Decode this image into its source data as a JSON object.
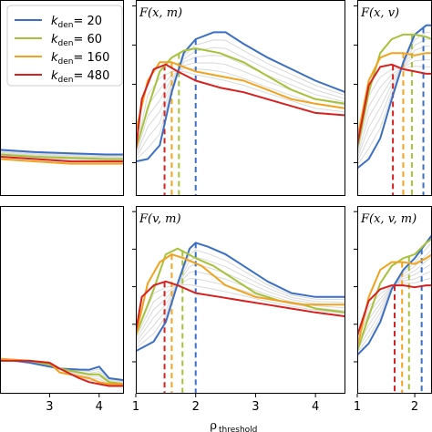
{
  "chart_data": {
    "type": "line",
    "xlabel_main": "ρ",
    "xlabel_sub": "threshold",
    "xlim_full": [
      1,
      4.5
    ],
    "x_ticks": [
      "1",
      "2",
      "3",
      "4"
    ],
    "legend": {
      "placement": "top-left",
      "entries": [
        {
          "k": "k",
          "sub": "den",
          "value": "= 20",
          "color": "#3b6fc6"
        },
        {
          "k": "k",
          "sub": "den",
          "value": "= 60",
          "color": "#a6c23a"
        },
        {
          "k": "k",
          "sub": "den",
          "value": "= 160",
          "color": "#f3a21e"
        },
        {
          "k": "k",
          "sub": "den",
          "value": "= 480",
          "color": "#d7211f"
        }
      ]
    },
    "colors": {
      "k20": "#3b6fc6",
      "k60": "#a6c23a",
      "k160": "#f3a21e",
      "k480": "#d7211f",
      "intermediate": "#d9d9d9"
    },
    "panels": [
      {
        "id": "top-left",
        "title": "",
        "xlim": [
          1,
          4.5
        ],
        "show_xticks": false,
        "series": [
          {
            "name": "k_den = 20",
            "color": "#3b6fc6",
            "x": [
              1.0,
              2.0,
              3.0,
              4.0,
              4.5
            ],
            "y": [
              0.2,
              0.19,
              0.185,
              0.18,
              0.18
            ]
          },
          {
            "name": "k_den = 60",
            "color": "#a6c23a",
            "x": [
              1.0,
              2.0,
              3.0,
              4.0,
              4.5
            ],
            "y": [
              0.18,
              0.17,
              0.165,
              0.16,
              0.16
            ]
          },
          {
            "name": "k_den = 160",
            "color": "#f3a21e",
            "x": [
              1.0,
              2.0,
              3.0,
              4.0,
              4.5
            ],
            "y": [
              0.16,
              0.15,
              0.14,
              0.14,
              0.14
            ]
          },
          {
            "name": "k_den = 480",
            "color": "#d7211f",
            "x": [
              1.0,
              2.0,
              3.0,
              4.0,
              4.5
            ],
            "y": [
              0.17,
              0.16,
              0.15,
              0.15,
              0.15
            ]
          }
        ],
        "thresholds": []
      },
      {
        "id": "top-middle",
        "title": "F(x, m)",
        "xlim": [
          1,
          4.5
        ],
        "show_xticks": false,
        "series": [
          {
            "name": "k_den = 20",
            "color": "#3b6fc6",
            "x": [
              1.0,
              1.2,
              1.4,
              1.6,
              1.8,
              2.0,
              2.3,
              2.5,
              2.8,
              3.2,
              3.6,
              4.0,
              4.5
            ],
            "y": [
              0.15,
              0.16,
              0.22,
              0.45,
              0.62,
              0.68,
              0.71,
              0.71,
              0.66,
              0.6,
              0.55,
              0.5,
              0.45
            ]
          },
          {
            "name": "k_den = 60",
            "color": "#a6c23a",
            "x": [
              1.0,
              1.2,
              1.4,
              1.6,
              1.8,
              2.0,
              2.4,
              2.8,
              3.2,
              3.6,
              4.0,
              4.5
            ],
            "y": [
              0.2,
              0.38,
              0.54,
              0.6,
              0.63,
              0.64,
              0.62,
              0.58,
              0.52,
              0.46,
              0.42,
              0.4
            ]
          },
          {
            "name": "k_den = 160",
            "color": "#f3a21e",
            "x": [
              1.0,
              1.2,
              1.4,
              1.6,
              1.8,
              2.0,
              2.4,
              2.8,
              3.2,
              3.6,
              4.0,
              4.5
            ],
            "y": [
              0.28,
              0.5,
              0.58,
              0.58,
              0.56,
              0.54,
              0.52,
              0.5,
              0.46,
              0.42,
              0.4,
              0.38
            ]
          },
          {
            "name": "k_den = 480",
            "color": "#d7211f",
            "x": [
              1.0,
              1.1,
              1.3,
              1.5,
              1.7,
              2.0,
              2.4,
              2.8,
              3.2,
              3.6,
              4.0,
              4.5
            ],
            "y": [
              0.2,
              0.42,
              0.55,
              0.57,
              0.54,
              0.5,
              0.47,
              0.45,
              0.42,
              0.39,
              0.36,
              0.35
            ]
          }
        ],
        "thresholds": [
          {
            "x": 2.0,
            "color": "#3b6fc6"
          },
          {
            "x": 1.72,
            "color": "#a6c23a"
          },
          {
            "x": 1.6,
            "color": "#f3a21e"
          },
          {
            "x": 1.48,
            "color": "#d7211f"
          }
        ]
      },
      {
        "id": "top-right",
        "title": "F(x, v)",
        "xlim": [
          1,
          2.3
        ],
        "show_xticks": false,
        "series": [
          {
            "name": "k_den = 20",
            "color": "#3b6fc6",
            "x": [
              1.0,
              1.2,
              1.4,
              1.6,
              1.8,
              2.0,
              2.2,
              2.3
            ],
            "y": [
              0.12,
              0.16,
              0.25,
              0.42,
              0.58,
              0.7,
              0.74,
              0.74
            ]
          },
          {
            "name": "k_den = 60",
            "color": "#a6c23a",
            "x": [
              1.0,
              1.2,
              1.4,
              1.6,
              1.8,
              2.0,
              2.2,
              2.3
            ],
            "y": [
              0.2,
              0.45,
              0.62,
              0.68,
              0.7,
              0.7,
              0.69,
              0.68
            ]
          },
          {
            "name": "k_den = 160",
            "color": "#f3a21e",
            "x": [
              1.0,
              1.2,
              1.4,
              1.6,
              1.8,
              2.0,
              2.2,
              2.3
            ],
            "y": [
              0.25,
              0.5,
              0.6,
              0.62,
              0.62,
              0.61,
              0.62,
              0.62
            ]
          },
          {
            "name": "k_den = 480",
            "color": "#d7211f",
            "x": [
              1.0,
              1.2,
              1.4,
              1.6,
              1.8,
              2.0,
              2.2,
              2.3
            ],
            "y": [
              0.22,
              0.48,
              0.56,
              0.57,
              0.55,
              0.54,
              0.53,
              0.53
            ]
          }
        ],
        "thresholds": [
          {
            "x": 2.15,
            "color": "#3b6fc6"
          },
          {
            "x": 1.95,
            "color": "#a6c23a"
          },
          {
            "x": 1.8,
            "color": "#f3a21e"
          },
          {
            "x": 1.62,
            "color": "#d7211f"
          }
        ]
      },
      {
        "id": "bottom-left",
        "title": "",
        "xlim": [
          2.0,
          4.5
        ],
        "show_xticks": true,
        "x_ticks": [
          "3",
          "4"
        ],
        "series": [
          {
            "name": "k_den = 20",
            "color": "#3b6fc6",
            "x": [
              2.0,
              2.6,
              3.0,
              3.2,
              3.6,
              3.8,
              4.0,
              4.2,
              4.5
            ],
            "y": [
              0.06,
              0.04,
              0.02,
              0.01,
              0.005,
              0.004,
              0.02,
              -0.04,
              -0.05
            ]
          },
          {
            "name": "k_den = 60",
            "color": "#a6c23a",
            "x": [
              2.0,
              2.6,
              3.0,
              3.2,
              3.6,
              3.8,
              4.0,
              4.2,
              4.5
            ],
            "y": [
              0.06,
              0.05,
              0.03,
              0.01,
              -0.01,
              -0.02,
              -0.02,
              -0.06,
              -0.07
            ]
          },
          {
            "name": "k_den = 160",
            "color": "#f3a21e",
            "x": [
              2.0,
              2.6,
              3.0,
              3.2,
              3.6,
              3.8,
              4.0,
              4.2,
              4.5
            ],
            "y": [
              0.06,
              0.05,
              0.04,
              -0.01,
              -0.03,
              -0.04,
              -0.06,
              -0.07,
              -0.07
            ]
          },
          {
            "name": "k_den = 480",
            "color": "#d7211f",
            "x": [
              2.0,
              2.6,
              3.0,
              3.2,
              3.6,
              3.8,
              4.0,
              4.2,
              4.5
            ],
            "y": [
              0.05,
              0.05,
              0.04,
              0.01,
              -0.04,
              -0.06,
              -0.07,
              -0.08,
              -0.08
            ]
          }
        ],
        "thresholds": []
      },
      {
        "id": "bottom-middle",
        "title": "F(v, m)",
        "xlim": [
          1,
          4.5
        ],
        "show_xticks": true,
        "x_ticks": [
          "1",
          "2",
          "3",
          "4"
        ],
        "series": [
          {
            "name": "k_den = 20",
            "color": "#3b6fc6",
            "x": [
              1.0,
              1.3,
              1.5,
              1.7,
              1.9,
              2.0,
              2.2,
              2.5,
              2.8,
              3.2,
              3.6,
              4.0,
              4.5
            ],
            "y": [
              0.1,
              0.15,
              0.25,
              0.45,
              0.63,
              0.66,
              0.64,
              0.6,
              0.54,
              0.46,
              0.4,
              0.38,
              0.38
            ]
          },
          {
            "name": "k_den = 60",
            "color": "#a6c23a",
            "x": [
              1.0,
              1.3,
              1.5,
              1.7,
              2.0,
              2.3,
              2.6,
              3.0,
              3.4,
              3.8,
              4.0,
              4.5
            ],
            "y": [
              0.18,
              0.42,
              0.6,
              0.63,
              0.58,
              0.54,
              0.48,
              0.4,
              0.36,
              0.34,
              0.32,
              0.3
            ]
          },
          {
            "name": "k_den = 160",
            "color": "#f3a21e",
            "x": [
              1.0,
              1.2,
              1.4,
              1.6,
              1.8,
              2.1,
              2.5,
              3.0,
              3.4,
              3.8,
              4.2,
              4.5
            ],
            "y": [
              0.18,
              0.45,
              0.56,
              0.6,
              0.58,
              0.54,
              0.44,
              0.38,
              0.36,
              0.34,
              0.34,
              0.34
            ]
          },
          {
            "name": "k_den = 480",
            "color": "#d7211f",
            "x": [
              1.0,
              1.1,
              1.3,
              1.5,
              1.7,
              2.0,
              2.4,
              2.8,
              3.2,
              3.6,
              4.0,
              4.5
            ],
            "y": [
              0.2,
              0.38,
              0.44,
              0.46,
              0.44,
              0.4,
              0.38,
              0.36,
              0.34,
              0.32,
              0.3,
              0.28
            ]
          }
        ],
        "thresholds": [
          {
            "x": 2.0,
            "color": "#3b6fc6"
          },
          {
            "x": 1.78,
            "color": "#a6c23a"
          },
          {
            "x": 1.6,
            "color": "#f3a21e"
          },
          {
            "x": 1.48,
            "color": "#d7211f"
          }
        ]
      },
      {
        "id": "bottom-right",
        "title": "F(x, v, m)",
        "xlim": [
          1,
          2.3
        ],
        "show_xticks": true,
        "x_ticks": [
          "1",
          "2"
        ],
        "series": [
          {
            "name": "k_den = 20",
            "color": "#3b6fc6",
            "x": [
              1.0,
              1.2,
              1.4,
              1.6,
              1.8,
              2.0,
              2.2,
              2.3
            ],
            "y": [
              0.08,
              0.14,
              0.25,
              0.42,
              0.52,
              0.58,
              0.66,
              0.7
            ]
          },
          {
            "name": "k_den = 60",
            "color": "#a6c23a",
            "x": [
              1.0,
              1.2,
              1.4,
              1.6,
              1.8,
              2.0,
              2.2,
              2.3
            ],
            "y": [
              0.1,
              0.28,
              0.45,
              0.54,
              0.58,
              0.6,
              0.66,
              0.68
            ]
          },
          {
            "name": "k_den = 160",
            "color": "#f3a21e",
            "x": [
              1.0,
              1.2,
              1.4,
              1.6,
              1.8,
              2.0,
              2.2,
              2.3
            ],
            "y": [
              0.12,
              0.38,
              0.52,
              0.56,
              0.56,
              0.55,
              0.58,
              0.6
            ]
          },
          {
            "name": "k_den = 480",
            "color": "#d7211f",
            "x": [
              1.0,
              1.2,
              1.4,
              1.6,
              1.8,
              2.0,
              2.2,
              2.3
            ],
            "y": [
              0.18,
              0.36,
              0.42,
              0.44,
              0.44,
              0.43,
              0.44,
              0.44
            ]
          }
        ],
        "thresholds": [
          {
            "x": 2.12,
            "color": "#3b6fc6"
          },
          {
            "x": 1.9,
            "color": "#a6c23a"
          },
          {
            "x": 1.78,
            "color": "#f3a21e"
          },
          {
            "x": 1.65,
            "color": "#d7211f"
          }
        ]
      }
    ]
  }
}
